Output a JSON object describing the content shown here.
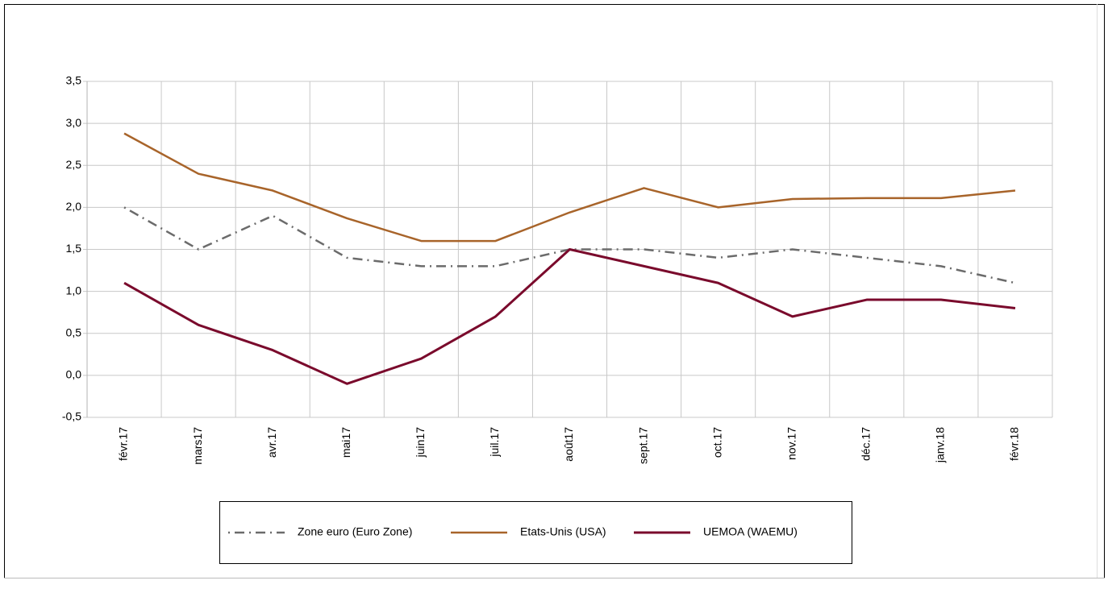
{
  "chart_data": {
    "type": "line",
    "categories": [
      "févr.17",
      "mars17",
      "avr.17",
      "mai17",
      "juin17",
      "juil.17",
      "août17",
      "sept.17",
      "oct.17",
      "nov.17",
      "déc.17",
      "janv.18",
      "févr.18"
    ],
    "series": [
      {
        "name": "Zone euro (Euro Zone)",
        "color": "#6b6b6b",
        "dash": "dashdot",
        "values": [
          2.0,
          1.5,
          1.9,
          1.4,
          1.3,
          1.3,
          1.5,
          1.5,
          1.4,
          1.5,
          1.4,
          1.3,
          1.1
        ]
      },
      {
        "name": "Etats-Unis (USA)",
        "color": "#a8642a",
        "values": [
          2.88,
          2.4,
          2.2,
          1.87,
          1.6,
          1.6,
          1.94,
          2.23,
          2.0,
          2.1,
          2.11,
          2.11,
          2.2
        ]
      },
      {
        "name": "UEMOA (WAEMU)",
        "color": "#7a0a2c",
        "values": [
          1.1,
          0.6,
          0.3,
          -0.1,
          0.2,
          0.7,
          1.5,
          1.3,
          1.1,
          0.7,
          0.9,
          0.9,
          0.8
        ]
      }
    ],
    "ylim": [
      -0.5,
      3.5
    ],
    "yticks": [
      {
        "value": -0.5,
        "label": "-0,5"
      },
      {
        "value": 0,
        "label": "0,0"
      },
      {
        "value": 0.5,
        "label": "0,5"
      },
      {
        "value": 1,
        "label": "1,0"
      },
      {
        "value": 1.5,
        "label": "1,5"
      },
      {
        "value": 2,
        "label": "2,0"
      },
      {
        "value": 2.5,
        "label": "2,5"
      },
      {
        "value": 3,
        "label": "3,0"
      },
      {
        "value": 3.5,
        "label": "3,5"
      }
    ],
    "grid": true,
    "legend": "bottom"
  }
}
